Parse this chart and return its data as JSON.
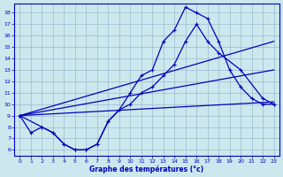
{
  "xlabel": "Graphe des températures (°c)",
  "background_color": "#cce8ee",
  "line_color": "#0000bb",
  "grid_color": "#99bbcc",
  "xlim": [
    -0.5,
    23.5
  ],
  "ylim": [
    5.5,
    18.8
  ],
  "xticks": [
    0,
    1,
    2,
    3,
    4,
    5,
    6,
    7,
    8,
    9,
    10,
    11,
    12,
    13,
    14,
    15,
    16,
    17,
    18,
    19,
    20,
    21,
    22,
    23
  ],
  "yticks": [
    6,
    7,
    8,
    9,
    10,
    11,
    12,
    13,
    14,
    15,
    16,
    17,
    18
  ],
  "curve_main_x": [
    0,
    1,
    2,
    3,
    4,
    5,
    6,
    7,
    8,
    9,
    10,
    11,
    12,
    13,
    14,
    15,
    16,
    17,
    18,
    19,
    20,
    21,
    22,
    23
  ],
  "curve_main_y": [
    9.0,
    7.5,
    8.0,
    7.5,
    6.5,
    6.0,
    6.0,
    6.5,
    8.5,
    9.5,
    11.0,
    12.5,
    13.0,
    15.5,
    16.5,
    18.5,
    18.0,
    17.5,
    15.5,
    13.0,
    11.5,
    10.5,
    10.0,
    10.0
  ],
  "curve2_x": [
    0,
    2,
    3,
    4,
    5,
    6,
    7,
    8,
    9,
    10,
    11,
    12,
    13,
    14,
    15,
    16,
    17,
    18,
    20,
    22,
    23
  ],
  "curve2_y": [
    9.0,
    8.0,
    7.5,
    6.5,
    6.0,
    6.0,
    6.5,
    8.5,
    9.5,
    10.0,
    11.0,
    11.5,
    12.5,
    13.5,
    15.5,
    17.0,
    15.5,
    14.5,
    13.0,
    10.5,
    10.0
  ],
  "line1_x": [
    0,
    23
  ],
  "line1_y": [
    9.0,
    15.5
  ],
  "line2_x": [
    0,
    23
  ],
  "line2_y": [
    9.0,
    13.0
  ],
  "line3_x": [
    0,
    23
  ],
  "line3_y": [
    9.0,
    10.2
  ]
}
